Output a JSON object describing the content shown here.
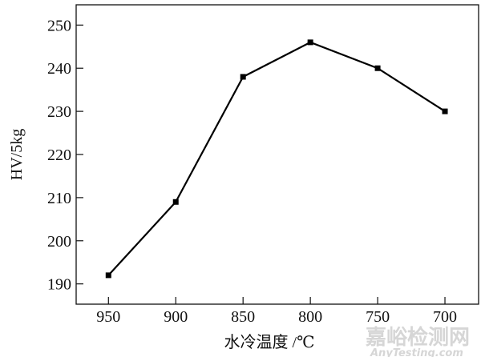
{
  "chart_data": {
    "type": "line",
    "title": "",
    "xlabel": "水冷温度 /℃",
    "ylabel": "HV/5kg",
    "x": [
      950,
      900,
      850,
      800,
      750,
      700
    ],
    "x_tick_labels": [
      "950",
      "900",
      "850",
      "800",
      "750",
      "700"
    ],
    "x_reversed": true,
    "xlim": [
      974,
      675
    ],
    "y_ticks": [
      190,
      200,
      210,
      220,
      230,
      240,
      250
    ],
    "y_tick_labels": [
      "190",
      "200",
      "210",
      "220",
      "230",
      "240",
      "250"
    ],
    "ylim": [
      185.3,
      254.7
    ],
    "series": [
      {
        "values": [
          192,
          209,
          238,
          246,
          240,
          230
        ],
        "marker": "square",
        "color": "#000000"
      }
    ],
    "grid": false,
    "legend": "none"
  },
  "watermark": {
    "line1": "嘉峪检测网",
    "line2": "AnyTesting.com"
  }
}
